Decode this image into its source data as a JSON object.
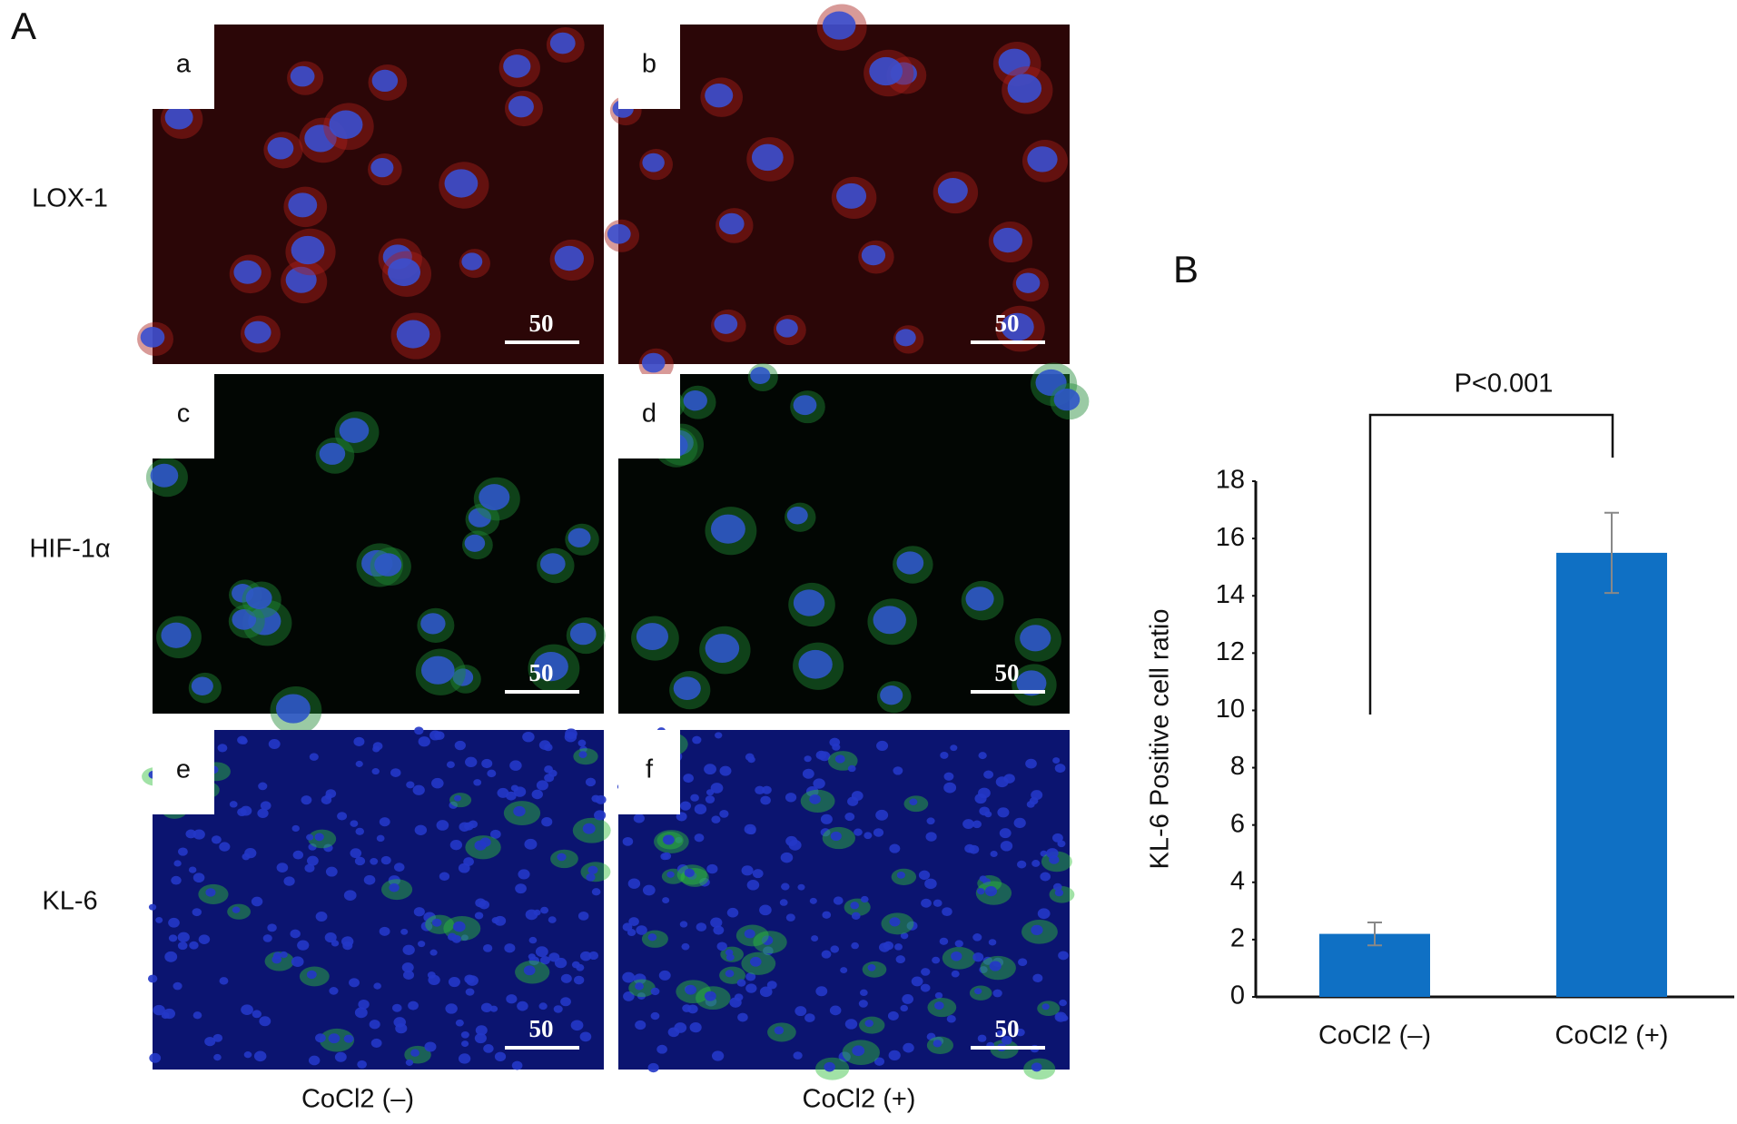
{
  "panel_a": {
    "label": "A",
    "row_labels": [
      "LOX-1",
      "HIF-1α",
      "KL-6"
    ],
    "column_labels": [
      "CoCl2 (–)",
      "CoCl2 (+)"
    ],
    "panels": [
      {
        "letter": "a",
        "scale": "50"
      },
      {
        "letter": "b",
        "scale": "50"
      },
      {
        "letter": "c",
        "scale": "50"
      },
      {
        "letter": "d",
        "scale": "50"
      },
      {
        "letter": "e",
        "scale": "50"
      },
      {
        "letter": "f",
        "scale": "50"
      }
    ]
  },
  "chart_data": {
    "type": "bar",
    "panel_label": "B",
    "y_label": "KL-6 Positive cell ratio",
    "annotation": "P<0.001",
    "categories": [
      "CoCl2 (–)",
      "CoCl2 (+)"
    ],
    "values": [
      2.2,
      15.5
    ],
    "errors": [
      0.4,
      1.4
    ],
    "color": "#0f70c4",
    "error_color": "#888888",
    "ylim": [
      0,
      18
    ],
    "yticks": [
      0,
      2,
      4,
      6,
      8,
      10,
      12,
      14,
      16,
      18
    ]
  }
}
